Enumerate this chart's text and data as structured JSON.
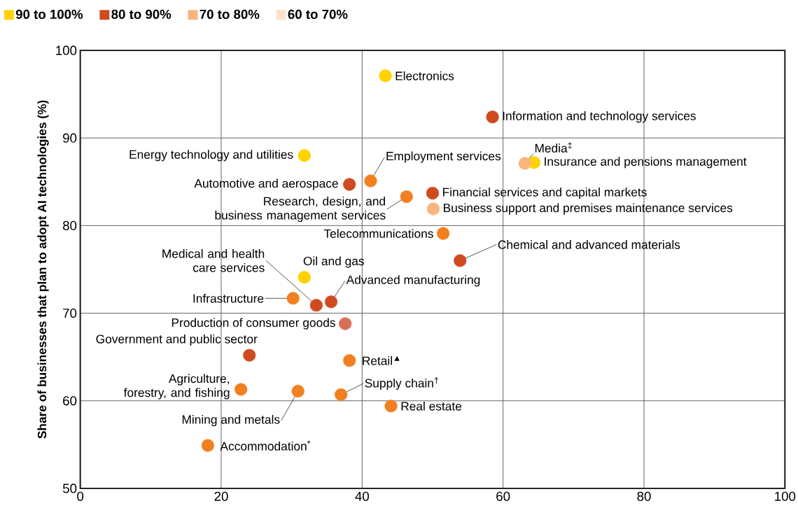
{
  "chart_data": {
    "type": "scatter",
    "ylabel": "Share of businesses that plan to adopt AI technologies (%)",
    "xlim": [
      0,
      100
    ],
    "ylim": [
      50,
      100
    ],
    "xticks": [
      0,
      20,
      40,
      60,
      80,
      100
    ],
    "yticks": [
      50,
      60,
      70,
      80,
      90,
      100
    ],
    "grid": true,
    "legend": "top left",
    "marker": "circle",
    "series": [
      {
        "name": "90 to 100%",
        "color": "#ffd200",
        "x": [
          43.3,
          31.8,
          64.4,
          31.8
        ],
        "values": [
          97.1,
          88.0,
          87.2,
          74.1
        ]
      },
      {
        "name": "80 to 90%",
        "color": "#d04a20",
        "x": [
          58.5,
          38.2,
          50.0,
          53.9,
          33.5,
          35.6,
          24.0
        ],
        "values": [
          92.4,
          84.7,
          83.7,
          76.0,
          70.9,
          71.3,
          65.2
        ]
      },
      {
        "name": "70 to 80%",
        "color": "#f9b57d",
        "x": [
          63.1,
          50.1
        ],
        "values": [
          87.1,
          81.9
        ]
      },
      {
        "name": "60 to 70%",
        "color": "#fee2cc"
      },
      {
        "color": "#f28020",
        "x": [
          41.2,
          46.3,
          51.5,
          30.2,
          38.2,
          22.8,
          30.9,
          37.0,
          44.1,
          18.1
        ],
        "values": [
          85.1,
          83.3,
          79.1,
          71.7,
          64.6,
          61.3,
          61.1,
          60.7,
          59.4,
          54.9
        ]
      },
      {
        "color": "#d87055",
        "x": [
          37.6
        ],
        "values": [
          68.8
        ]
      }
    ],
    "annotations": [
      {
        "text": "Electronics",
        "x": 43.3,
        "y": 97.1
      },
      {
        "text": "Information and technology services",
        "x": 58.5,
        "y": 92.4
      },
      {
        "text": "Energy technology and utilities",
        "x": 31.8,
        "y": 88.0
      },
      {
        "text": "Media$^{‡}$",
        "x": 63.1,
        "y": 87.1
      },
      {
        "text": "Insurance and pensions management",
        "x": 64.4,
        "y": 87.2
      },
      {
        "text": "Employment services",
        "x": 41.2,
        "y": 85.1
      },
      {
        "text": "Automotive and aerospace",
        "x": 38.2,
        "y": 84.7
      },
      {
        "text": "Research, design, and business management services",
        "x": 46.3,
        "y": 83.3
      },
      {
        "text": "Financial services and capital markets",
        "x": 50.0,
        "y": 83.7
      },
      {
        "text": "Business support and premises maintenance services",
        "x": 50.1,
        "y": 81.9
      },
      {
        "text": "Telecommunications",
        "x": 51.5,
        "y": 79.1
      },
      {
        "text": "Chemical and advanced materials",
        "x": 53.9,
        "y": 76.0
      },
      {
        "text": "Oil and gas",
        "x": 31.8,
        "y": 74.1
      },
      {
        "text": "Infrastructure",
        "x": 30.2,
        "y": 71.7
      },
      {
        "text": "Medical and health care services",
        "x": 33.5,
        "y": 70.9
      },
      {
        "text": "Advanced manufacturing",
        "x": 35.6,
        "y": 71.3
      },
      {
        "text": "Production of consumer goods",
        "x": 37.6,
        "y": 68.8
      },
      {
        "text": "Government and public sector",
        "x": 24.0,
        "y": 65.2
      },
      {
        "text": "Retail$^{▲}$",
        "x": 38.2,
        "y": 64.6
      },
      {
        "text": "Agriculture, forestry, and fishing",
        "x": 22.8,
        "y": 61.3
      },
      {
        "text": "Mining and metals",
        "x": 30.9,
        "y": 61.1
      },
      {
        "text": "Supply chain$^{†}$",
        "x": 37.0,
        "y": 60.7
      },
      {
        "text": "Real estate",
        "x": 44.1,
        "y": 59.4
      },
      {
        "text": "Accommodation$^{*}$",
        "x": 18.1,
        "y": 54.9
      }
    ]
  }
}
